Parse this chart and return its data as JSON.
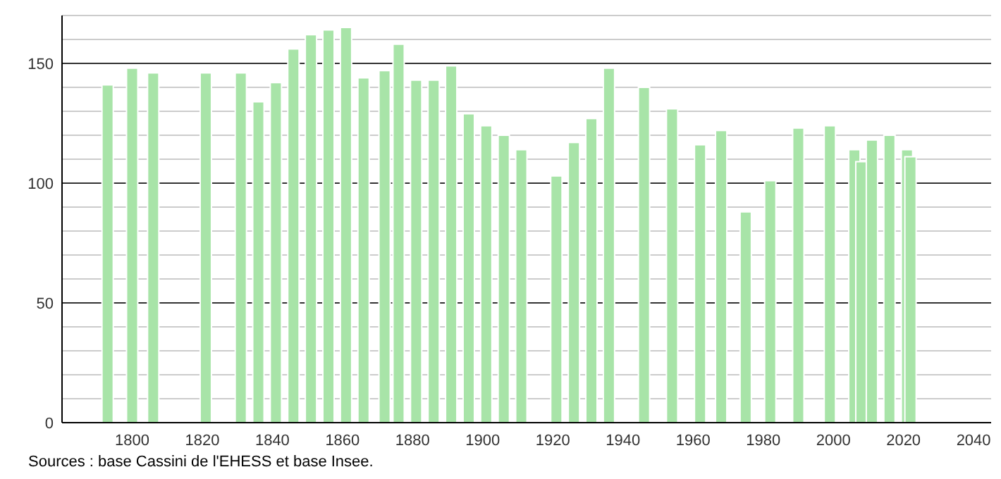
{
  "chart_data": {
    "type": "bar",
    "x": [
      1793,
      1800,
      1806,
      1821,
      1831,
      1836,
      1841,
      1846,
      1851,
      1856,
      1861,
      1866,
      1872,
      1876,
      1881,
      1886,
      1891,
      1896,
      1901,
      1906,
      1911,
      1921,
      1926,
      1931,
      1936,
      1946,
      1954,
      1962,
      1968,
      1975,
      1982,
      1990,
      1999,
      2006,
      2008,
      2011,
      2016,
      2021,
      2022
    ],
    "values": [
      141,
      148,
      146,
      146,
      146,
      134,
      142,
      156,
      162,
      164,
      165,
      144,
      147,
      158,
      143,
      143,
      149,
      129,
      124,
      120,
      114,
      103,
      117,
      127,
      148,
      140,
      131,
      116,
      122,
      88,
      101,
      123,
      124,
      114,
      109,
      118,
      120,
      114,
      111
    ],
    "color": "#a8e4a8",
    "xlim": [
      1780,
      2045
    ],
    "xticks": [
      1800,
      1820,
      1840,
      1860,
      1880,
      1900,
      1920,
      1940,
      1960,
      1980,
      2000,
      2020,
      2040
    ],
    "ylim": [
      0,
      170
    ],
    "yticks": [
      0,
      {
        "value": 10,
        "label": null
      },
      {
        "value": 20,
        "label": null
      },
      {
        "value": 30,
        "label": null
      },
      {
        "value": 40,
        "label": null
      },
      50,
      {
        "value": 60,
        "label": null
      },
      {
        "value": 70,
        "label": null
      },
      {
        "value": 80,
        "label": null
      },
      {
        "value": 90,
        "label": null
      },
      100,
      {
        "value": 110,
        "label": null
      },
      {
        "value": 120,
        "label": null
      },
      {
        "value": 130,
        "label": null
      },
      {
        "value": 140,
        "label": null
      },
      150,
      {
        "value": 160,
        "label": null
      },
      {
        "value": 170,
        "label": null
      }
    ],
    "grid": "y",
    "annotations": [
      "Sources : base Cassini de l'EHESS et base Insee."
    ]
  }
}
